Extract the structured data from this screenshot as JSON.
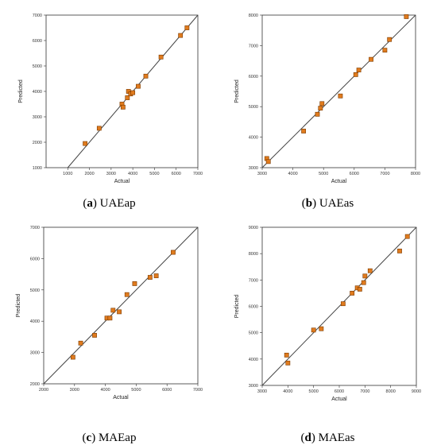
{
  "chart_data": [
    {
      "type": "scatter",
      "panel_letter": "a",
      "panel_name": "UAEap",
      "xlabel": "Actual",
      "ylabel": "Predicted",
      "xlim": [
        0,
        7000
      ],
      "ylim": [
        1000,
        7000
      ],
      "xticks": [
        1000,
        2000,
        3000,
        4000,
        5000,
        6000,
        7000
      ],
      "yticks": [
        1000,
        2000,
        3000,
        4000,
        5000,
        6000,
        7000
      ],
      "diagonal": [
        1000,
        7000
      ],
      "points": [
        [
          1800,
          1950
        ],
        [
          2450,
          2550
        ],
        [
          3500,
          3500
        ],
        [
          3550,
          3380
        ],
        [
          3750,
          3750
        ],
        [
          3800,
          4000
        ],
        [
          3900,
          3900
        ],
        [
          4000,
          3950
        ],
        [
          4250,
          4200
        ],
        [
          4600,
          4600
        ],
        [
          5300,
          5350
        ],
        [
          6200,
          6200
        ],
        [
          6500,
          6500
        ]
      ]
    },
    {
      "type": "scatter",
      "panel_letter": "b",
      "panel_name": "UAEas",
      "xlabel": "Actual",
      "ylabel": "Predicted",
      "xlim": [
        3000,
        8000
      ],
      "ylim": [
        3000,
        8000
      ],
      "xticks": [
        3000,
        4000,
        5000,
        6000,
        7000,
        8000
      ],
      "yticks": [
        3000,
        4000,
        5000,
        6000,
        7000,
        8000
      ],
      "diagonal": [
        3000,
        8000
      ],
      "points": [
        [
          3150,
          3300
        ],
        [
          3200,
          3200
        ],
        [
          4350,
          4200
        ],
        [
          4800,
          4750
        ],
        [
          4900,
          4950
        ],
        [
          4950,
          5100
        ],
        [
          5550,
          5350
        ],
        [
          6050,
          6050
        ],
        [
          6150,
          6200
        ],
        [
          6550,
          6550
        ],
        [
          7000,
          6850
        ],
        [
          7150,
          7200
        ],
        [
          7700,
          7950
        ]
      ]
    },
    {
      "type": "scatter",
      "panel_letter": "c",
      "panel_name": "MAEap",
      "xlabel": "Actual",
      "ylabel": "Predicted",
      "xlim": [
        2000,
        7000
      ],
      "ylim": [
        2000,
        7000
      ],
      "xticks": [
        2000,
        3000,
        4000,
        5000,
        6000,
        7000
      ],
      "yticks": [
        2000,
        3000,
        4000,
        5000,
        6000,
        7000
      ],
      "diagonal": [
        2000,
        7000
      ],
      "points": [
        [
          2950,
          2850
        ],
        [
          3200,
          3300
        ],
        [
          3650,
          3550
        ],
        [
          4050,
          4100
        ],
        [
          4150,
          4100
        ],
        [
          4250,
          4350
        ],
        [
          4450,
          4300
        ],
        [
          4700,
          4850
        ],
        [
          4950,
          5200
        ],
        [
          5450,
          5400
        ],
        [
          5650,
          5450
        ],
        [
          6200,
          6200
        ]
      ]
    },
    {
      "type": "scatter",
      "panel_letter": "d",
      "panel_name": "MAEas",
      "xlabel": "Actual",
      "ylabel": "Predicted",
      "xlim": [
        3000,
        9000
      ],
      "ylim": [
        3000,
        9000
      ],
      "xticks": [
        3000,
        4000,
        5000,
        6000,
        7000,
        8000,
        9000
      ],
      "yticks": [
        3000,
        4000,
        5000,
        6000,
        7000,
        8000,
        9000
      ],
      "diagonal": [
        3000,
        9000
      ],
      "points": [
        [
          3950,
          4150
        ],
        [
          4000,
          3850
        ],
        [
          5000,
          5100
        ],
        [
          5300,
          5150
        ],
        [
          6150,
          6100
        ],
        [
          6500,
          6500
        ],
        [
          6700,
          6700
        ],
        [
          6800,
          6650
        ],
        [
          6950,
          6900
        ],
        [
          7000,
          7150
        ],
        [
          7200,
          7350
        ],
        [
          8350,
          8100
        ],
        [
          8650,
          8650
        ]
      ]
    }
  ],
  "marker_fill": "#e07b1e",
  "marker_stroke": "#7a3a00",
  "line_color": "#444444"
}
